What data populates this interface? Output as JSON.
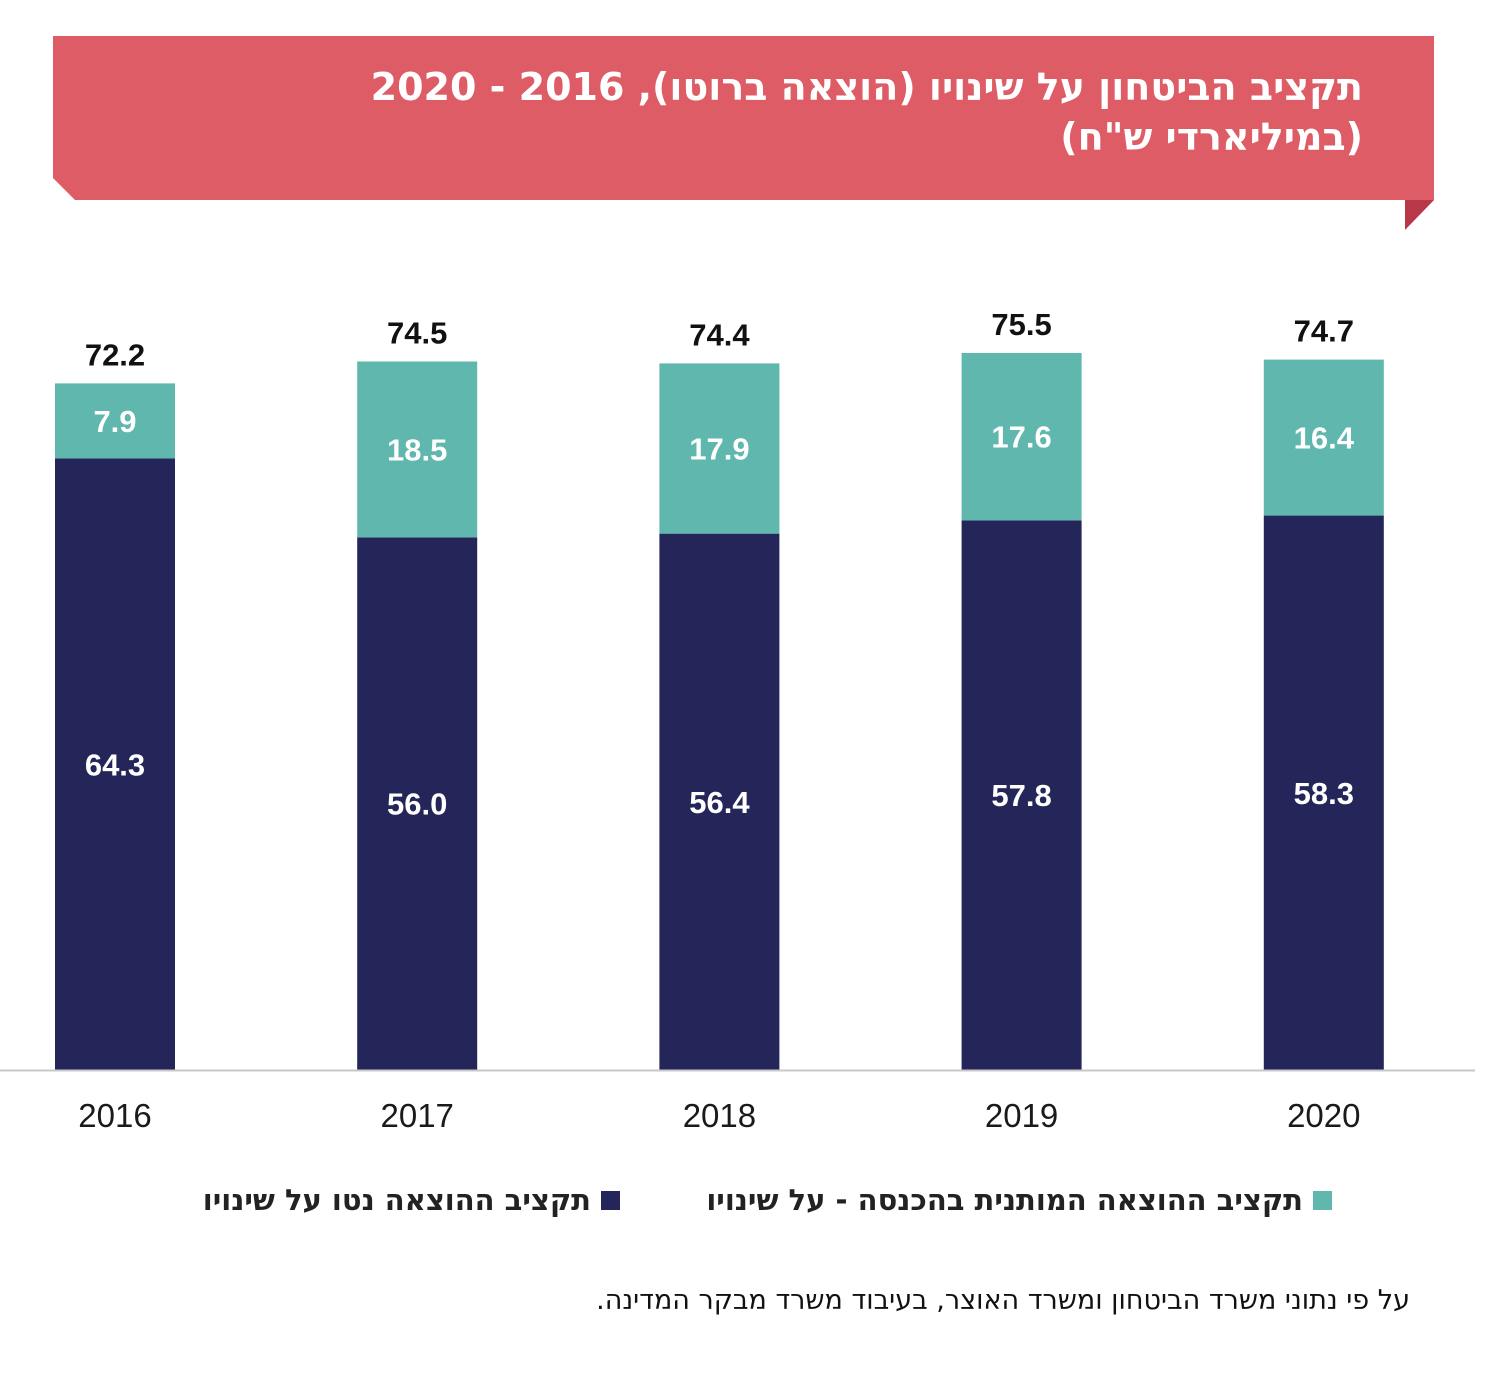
{
  "colors": {
    "banner": "#dd5c66",
    "banner_fold": "#b8384a",
    "net": "#242558",
    "conditional": "#5fb7ad",
    "axis": "#c8c8c8"
  },
  "title": "תקציב הביטחון על שינויו (הוצאה ברוטו), 2016 - 2020 (במיליארדי ש\"ח)",
  "source_note": "על פי נתוני משרד הביטחון ומשרד האוצר, בעיבוד משרד מבקר המדינה.",
  "chart_data": {
    "type": "bar",
    "stacked": true,
    "title": "תקציב הביטחון על שינויו (הוצאה ברוטו), 2016 - 2020 (במיליארדי ש\"ח)",
    "categories": [
      "2016",
      "2017",
      "2018",
      "2019",
      "2020"
    ],
    "series": [
      {
        "name": "תקציב ההוצאה נטו על שינויו",
        "values": [
          64.3,
          56.0,
          56.4,
          57.8,
          58.3
        ]
      },
      {
        "name": "תקציב ההוצאה המותנית בהכנסה - על שינויו",
        "values": [
          7.9,
          18.5,
          17.9,
          17.6,
          16.4
        ]
      }
    ],
    "totals": [
      72.2,
      74.5,
      74.4,
      75.5,
      74.7
    ],
    "value_labels": [
      [
        "64.3",
        "56.0",
        "56.4",
        "57.8",
        "58.3"
      ],
      [
        "7.9",
        "18.5",
        "17.9",
        "17.6",
        "16.4"
      ]
    ],
    "total_labels": [
      "72.2",
      "74.5",
      "74.4",
      "75.5",
      "74.7"
    ],
    "xlabel": "",
    "ylabel": "",
    "ylim": [
      0,
      75.5
    ],
    "grid": false,
    "legend": "bottom"
  }
}
